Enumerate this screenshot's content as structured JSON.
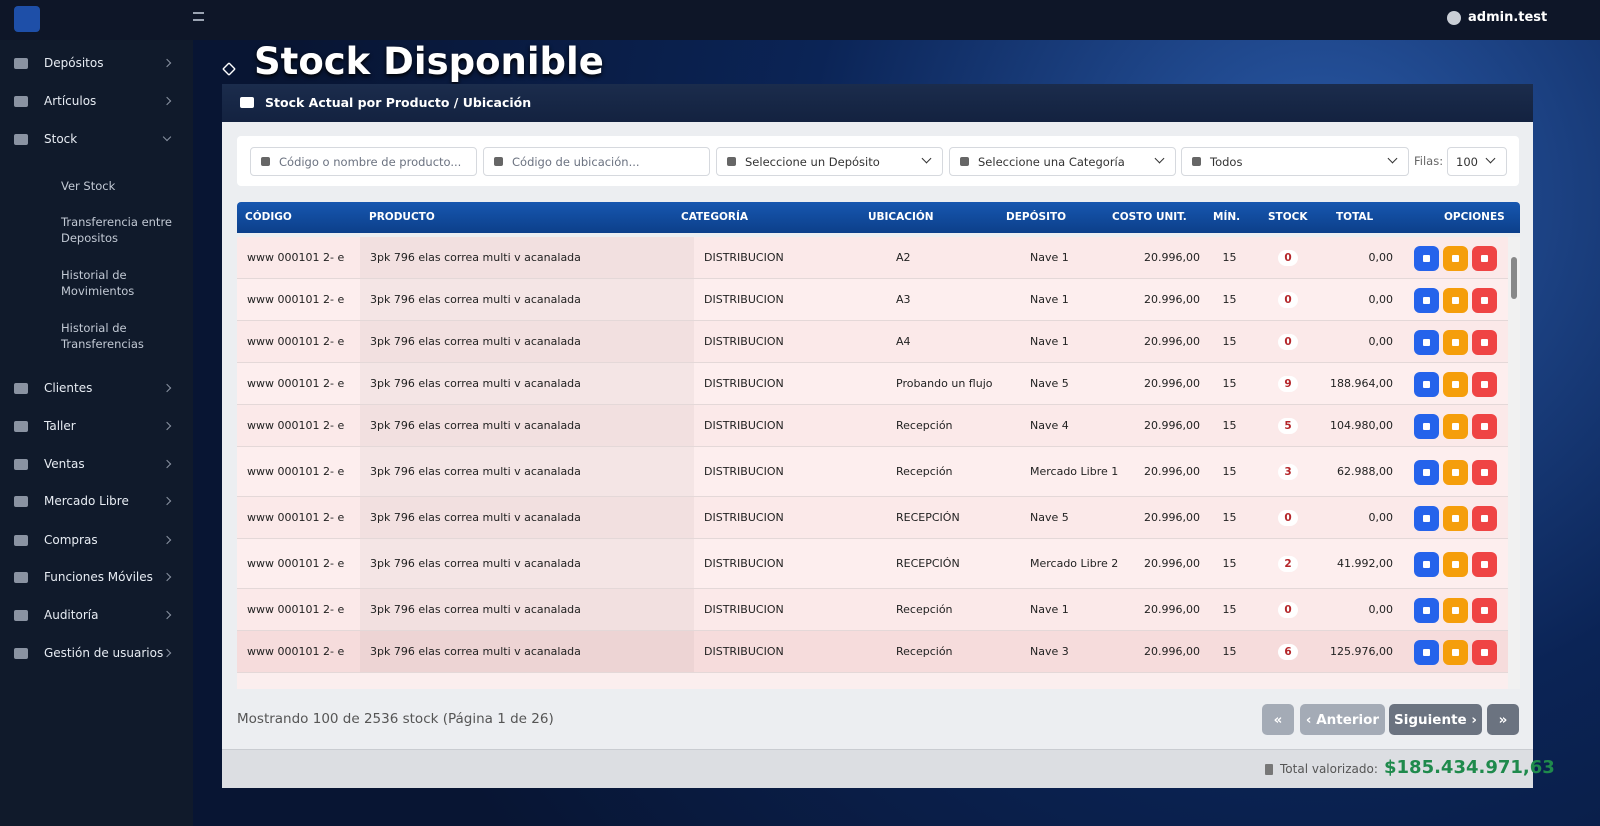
{
  "topbar": {
    "user": "admin.test"
  },
  "sidebar": {
    "items": [
      "Depósitos",
      "Artículos",
      "Stock",
      "Clientes",
      "Taller",
      "Ventas",
      "Mercado Libre",
      "Compras",
      "Funciones Móviles",
      "Auditoría",
      "Gestión de usuarios"
    ],
    "stock_sub": [
      "Ver Stock",
      "Transferencia entre Depositos",
      "Historial de Movimientos",
      "Historial de Transferencias"
    ]
  },
  "page": {
    "title": "Stock Disponible"
  },
  "card": {
    "title": "Stock Actual por Producto / Ubicación"
  },
  "filters": {
    "search_placeholder": "Código o nombre de producto...",
    "location_placeholder": "Código de ubicación...",
    "deposit": "Seleccione un Depósito",
    "category": "Seleccione una Categoría",
    "status": "Todos",
    "rows_label": "Filas:",
    "rows_value": "100"
  },
  "table": {
    "columns": [
      "CÓDIGO",
      "PRODUCTO",
      "CATEGORÍA",
      "UBICACIÓN",
      "DEPÓSITO",
      "COSTO UNIT.",
      "MÍN.",
      "STOCK",
      "TOTAL",
      "OPCIONES"
    ],
    "rows": [
      [
        "www 000101 2- e",
        "3pk 796 elas correa multi v acanalada",
        "DISTRIBUCION",
        "A2",
        "Nave 1",
        "20.996,00",
        15,
        0,
        "0,00"
      ],
      [
        "www 000101 2- e",
        "3pk 796 elas correa multi v acanalada",
        "DISTRIBUCION",
        "A3",
        "Nave 1",
        "20.996,00",
        15,
        0,
        "0,00"
      ],
      [
        "www 000101 2- e",
        "3pk 796 elas correa multi v acanalada",
        "DISTRIBUCION",
        "A4",
        "Nave 1",
        "20.996,00",
        15,
        0,
        "0,00"
      ],
      [
        "www 000101 2- e",
        "3pk 796 elas correa multi v acanalada",
        "DISTRIBUCION",
        "Probando un flujo",
        "Nave 5",
        "20.996,00",
        15,
        9,
        "188.964,00"
      ],
      [
        "www 000101 2- e",
        "3pk 796 elas correa multi v acanalada",
        "DISTRIBUCION",
        "Recepción",
        "Nave 4",
        "20.996,00",
        15,
        5,
        "104.980,00"
      ],
      [
        "www 000101 2- e",
        "3pk 796 elas correa multi v acanalada",
        "DISTRIBUCION",
        "Recepción",
        "Mercado Libre 1",
        "20.996,00",
        15,
        3,
        "62.988,00"
      ],
      [
        "www 000101 2- e",
        "3pk 796 elas correa multi v acanalada",
        "DISTRIBUCION",
        "RECEPCIÓN",
        "Nave 5",
        "20.996,00",
        15,
        0,
        "0,00"
      ],
      [
        "www 000101 2- e",
        "3pk 796 elas correa multi v acanalada",
        "DISTRIBUCION",
        "RECEPCIÓN",
        "Mercado Libre 2",
        "20.996,00",
        15,
        2,
        "41.992,00"
      ],
      [
        "www 000101 2- e",
        "3pk 796 elas correa multi v acanalada",
        "DISTRIBUCION",
        "Recepción",
        "Nave 1",
        "20.996,00",
        15,
        0,
        "0,00"
      ],
      [
        "www 000101 2- e",
        "3pk 796 elas correa multi v acanalada",
        "DISTRIBUCION",
        "Recepción",
        "Nave 3",
        "20.996,00",
        15,
        6,
        "125.976,00"
      ]
    ]
  },
  "pagination": {
    "info": "Mostrando 100 de 2536 stock (Página 1 de 26)",
    "prev": "Anterior",
    "next": "Siguiente"
  },
  "footer": {
    "total_label": "Total valorizado:",
    "total": "$185.434.971,63"
  }
}
